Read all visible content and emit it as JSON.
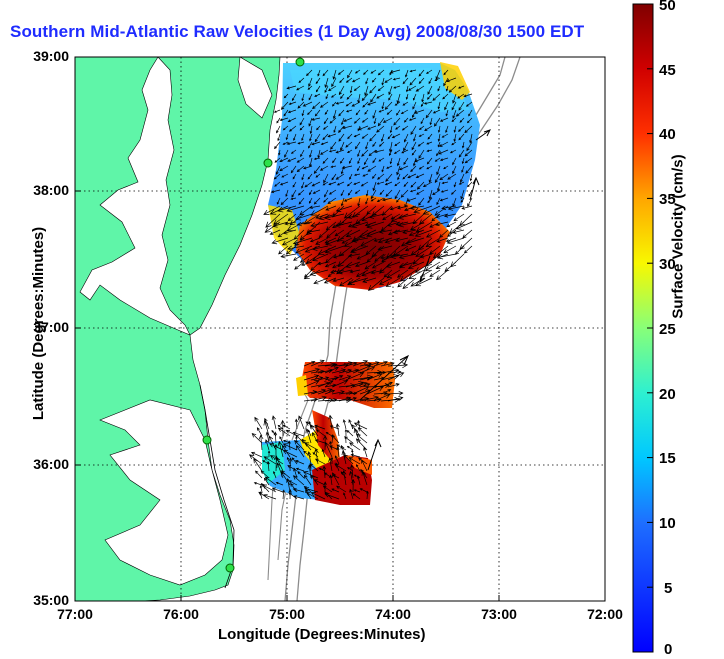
{
  "title": "Southern Mid-Atlantic Raw Velocities (1 Day Avg) 2008/08/30 1500 EDT",
  "map": {
    "xlabel": "Longitude (Degrees:Minutes)",
    "ylabel": "Latitude (Degrees:Minutes)",
    "x_ticks": [
      "77:00",
      "76:00",
      "75:00",
      "74:00",
      "73:00",
      "72:00"
    ],
    "y_ticks": [
      "39:00",
      "38:00",
      "37:00",
      "36:00",
      "35:00"
    ],
    "land_color": "#5ff5a8",
    "grid": "dotted",
    "stations": 4
  },
  "colorbar": {
    "label": "Surface Velocity (cm/s)",
    "ticks": [
      "50",
      "45",
      "40",
      "35",
      "30",
      "25",
      "20",
      "15",
      "10",
      "5",
      "0"
    ],
    "range": [
      0,
      50
    ],
    "colormap": "jet"
  }
}
